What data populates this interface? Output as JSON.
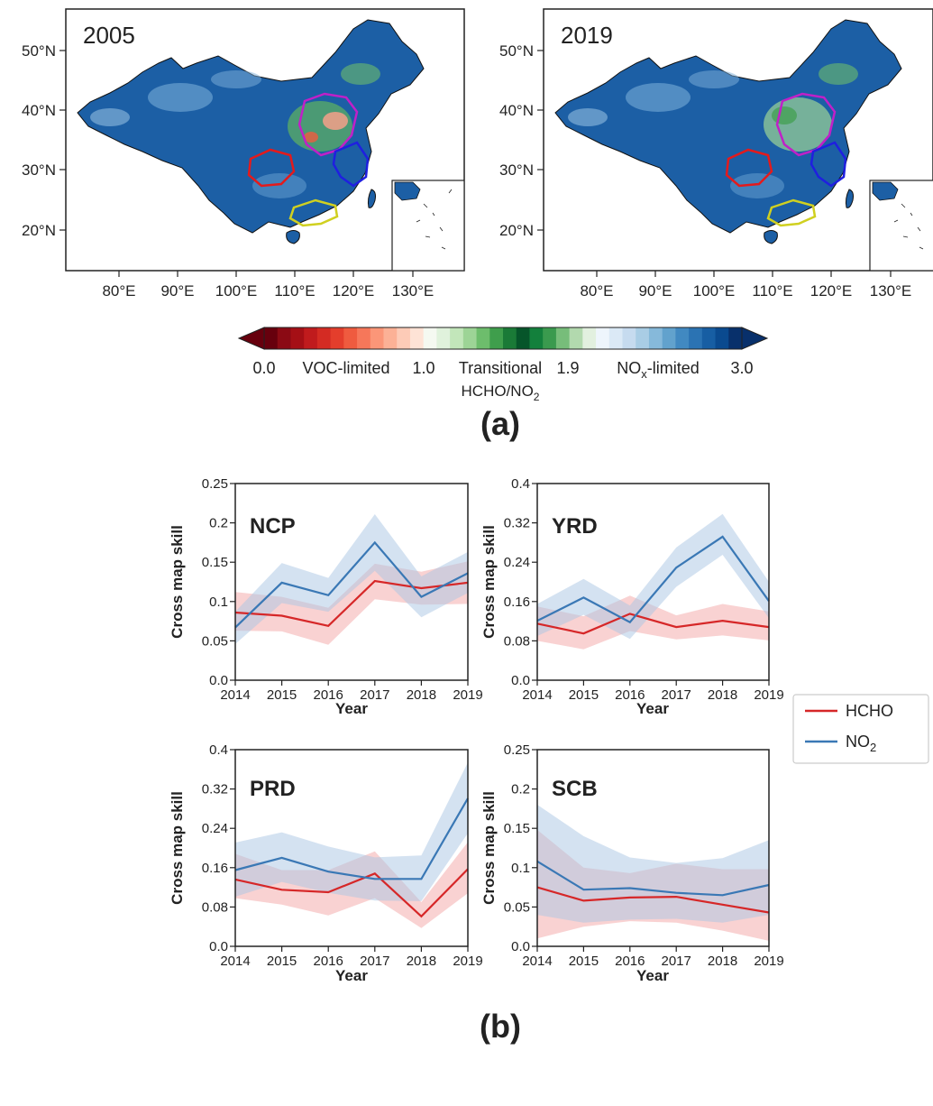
{
  "figure_a": {
    "panel_label": "(a)",
    "maps": [
      {
        "title": "2005"
      },
      {
        "title": "2019"
      }
    ],
    "map_y_ticks": [
      "50°N",
      "40°N",
      "30°N",
      "20°N"
    ],
    "map_x_ticks": [
      "80°E",
      "90°E",
      "100°E",
      "110°E",
      "120°E",
      "130°E"
    ],
    "colorbar": {
      "tick_labels": [
        "0.0",
        "1.0",
        "1.9",
        "3.0"
      ],
      "regime_labels": [
        {
          "text": "VOC-limited",
          "color": "#e41a1c"
        },
        {
          "text": "Transitional",
          "color": "#1a8a1a"
        },
        {
          "text": "NO",
          "sub": "x",
          "suffix": "-limited",
          "color": "#1f1fcc"
        }
      ],
      "label_main": "HCHO/NO",
      "label_sub": "2",
      "colors": [
        "#67000d",
        "#8b0a14",
        "#a50f15",
        "#c01b1d",
        "#d42b23",
        "#e43e2c",
        "#ef5b3f",
        "#f6775a",
        "#fb9678",
        "#fcb196",
        "#fdcbb7",
        "#fee3d6",
        "#f5f9f1",
        "#e0f2dc",
        "#c2e6ba",
        "#9dd496",
        "#6dbd6c",
        "#3f9e4c",
        "#1a7a37",
        "#06552a",
        "#13803c",
        "#3a9a4e",
        "#77bd7a",
        "#b2d9ae",
        "#e2f0df",
        "#eef5fc",
        "#dbe9f6",
        "#c6dbef",
        "#a9cde5",
        "#86b9da",
        "#62a2cd",
        "#4189c1",
        "#2b73b3",
        "#175ea3",
        "#0a4a8f",
        "#08306b"
      ]
    }
  },
  "figure_b": {
    "panel_label": "(b)",
    "legend": [
      {
        "name": "HCHO",
        "color": "#d62728"
      },
      {
        "name": "NO",
        "sub": "2",
        "color": "#3a78b5"
      }
    ]
  },
  "chart_data": [
    {
      "type": "line",
      "region": "NCP",
      "x": [
        2014,
        2015,
        2016,
        2017,
        2018,
        2019
      ],
      "xlabel": "Year",
      "ylabel": "Cross map skill",
      "ylim": [
        0,
        0.25
      ],
      "yticks": [
        "0.0",
        "0.05",
        "0.1",
        "0.15",
        "0.2",
        "0.25"
      ],
      "series": [
        {
          "name": "HCHO",
          "values": [
            0.086,
            0.082,
            0.069,
            0.126,
            0.117,
            0.124
          ],
          "lower": [
            0.063,
            0.062,
            0.045,
            0.103,
            0.096,
            0.097
          ],
          "upper": [
            0.112,
            0.106,
            0.092,
            0.148,
            0.138,
            0.151
          ]
        },
        {
          "name": "NO2",
          "values": [
            0.067,
            0.124,
            0.108,
            0.175,
            0.106,
            0.136
          ],
          "lower": [
            0.046,
            0.098,
            0.087,
            0.139,
            0.08,
            0.111
          ],
          "upper": [
            0.087,
            0.149,
            0.13,
            0.211,
            0.132,
            0.163
          ]
        }
      ]
    },
    {
      "type": "line",
      "region": "YRD",
      "x": [
        2014,
        2015,
        2016,
        2017,
        2018,
        2019
      ],
      "xlabel": "Year",
      "ylabel": "Cross map skill",
      "ylim": [
        0,
        0.4
      ],
      "yticks": [
        "0.0",
        "0.08",
        "0.16",
        "0.24",
        "0.32",
        "0.4"
      ],
      "series": [
        {
          "name": "HCHO",
          "values": [
            0.115,
            0.095,
            0.135,
            0.108,
            0.121,
            0.108
          ],
          "lower": [
            0.08,
            0.063,
            0.1,
            0.083,
            0.091,
            0.081
          ],
          "upper": [
            0.15,
            0.13,
            0.172,
            0.132,
            0.155,
            0.14
          ]
        },
        {
          "name": "NO2",
          "values": [
            0.121,
            0.168,
            0.118,
            0.229,
            0.292,
            0.161
          ],
          "lower": [
            0.09,
            0.133,
            0.084,
            0.19,
            0.255,
            0.126
          ],
          "upper": [
            0.155,
            0.206,
            0.152,
            0.27,
            0.338,
            0.2
          ]
        }
      ]
    },
    {
      "type": "line",
      "region": "PRD",
      "x": [
        2014,
        2015,
        2016,
        2017,
        2018,
        2019
      ],
      "xlabel": "Year",
      "ylabel": "Cross map skill",
      "ylim": [
        0,
        0.4
      ],
      "yticks": [
        "0.0",
        "0.08",
        "0.16",
        "0.24",
        "0.32",
        "0.4"
      ],
      "series": [
        {
          "name": "HCHO",
          "values": [
            0.136,
            0.115,
            0.11,
            0.148,
            0.061,
            0.157
          ],
          "lower": [
            0.098,
            0.085,
            0.063,
            0.098,
            0.037,
            0.108
          ],
          "upper": [
            0.188,
            0.155,
            0.155,
            0.193,
            0.09,
            0.212
          ]
        },
        {
          "name": "NO2",
          "values": [
            0.155,
            0.18,
            0.152,
            0.137,
            0.137,
            0.301
          ],
          "lower": [
            0.101,
            0.131,
            0.109,
            0.093,
            0.092,
            0.23
          ],
          "upper": [
            0.211,
            0.232,
            0.203,
            0.181,
            0.185,
            0.374
          ]
        }
      ]
    },
    {
      "type": "line",
      "region": "SCB",
      "x": [
        2014,
        2015,
        2016,
        2017,
        2018,
        2019
      ],
      "xlabel": "Year",
      "ylabel": "Cross map skill",
      "ylim": [
        0,
        0.25
      ],
      "yticks": [
        "0.0",
        "0.05",
        "0.1",
        "0.15",
        "0.2",
        "0.25"
      ],
      "series": [
        {
          "name": "HCHO",
          "values": [
            0.075,
            0.058,
            0.062,
            0.063,
            0.053,
            0.043
          ],
          "lower": [
            0.01,
            0.025,
            0.032,
            0.03,
            0.02,
            0.007
          ],
          "upper": [
            0.148,
            0.1,
            0.093,
            0.105,
            0.098,
            0.098
          ]
        },
        {
          "name": "NO2",
          "values": [
            0.108,
            0.072,
            0.074,
            0.068,
            0.065,
            0.078
          ],
          "lower": [
            0.04,
            0.03,
            0.034,
            0.035,
            0.03,
            0.04
          ],
          "upper": [
            0.18,
            0.14,
            0.113,
            0.106,
            0.112,
            0.135
          ]
        }
      ]
    }
  ]
}
